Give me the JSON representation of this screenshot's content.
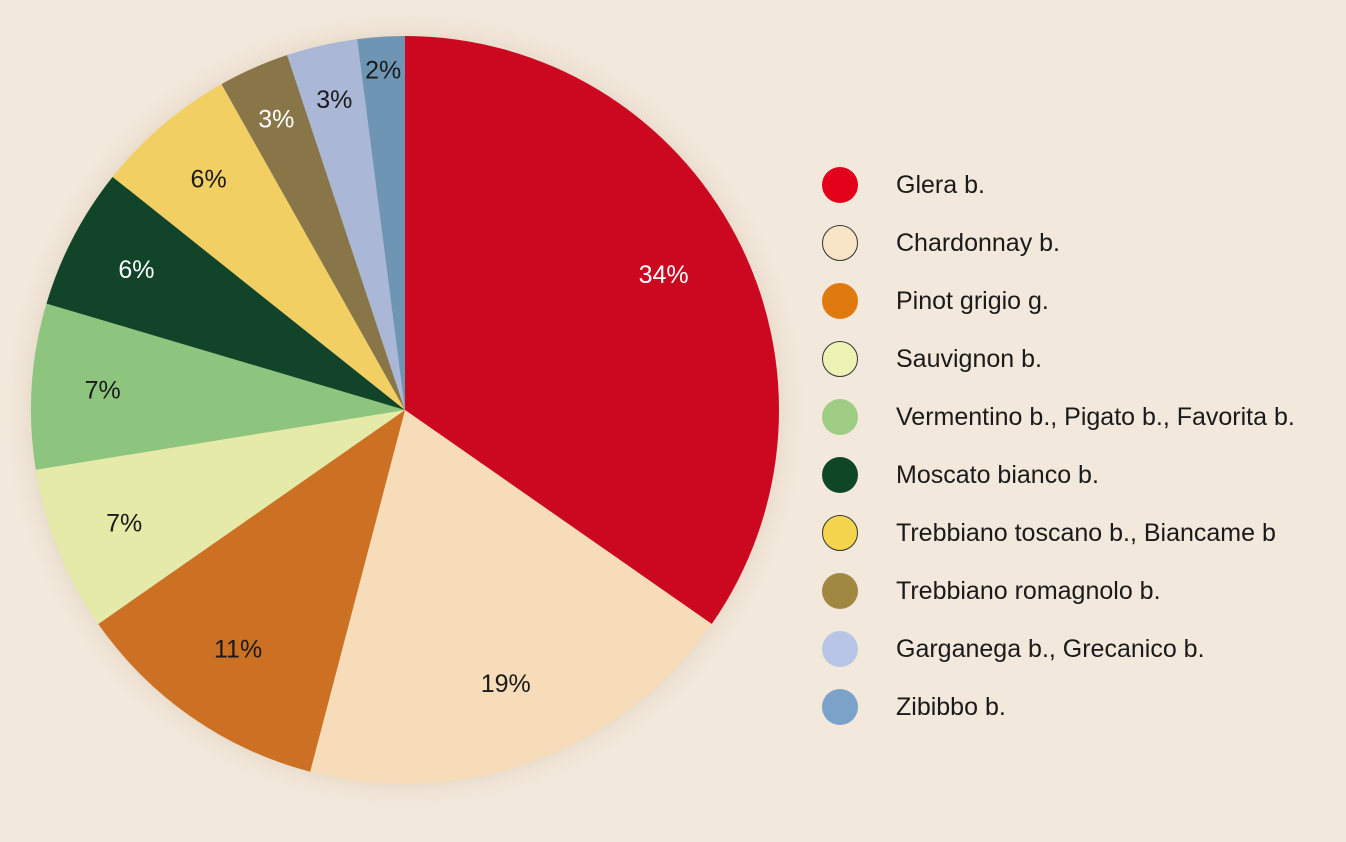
{
  "chart_data": {
    "type": "pie",
    "title": "",
    "start_angle_deg": 0,
    "direction": "clockwise",
    "slices": [
      {
        "label": "Glera b.",
        "value": 34,
        "display": "34%",
        "color": "#cc0820",
        "legend_color": "#e3001b",
        "label_color": "#ffffff"
      },
      {
        "label": "Chardonnay b.",
        "value": 19,
        "display": "19%",
        "color": "#f6dcb8",
        "legend_color": "#f8e4c6",
        "label_color": "#1a1a1a"
      },
      {
        "label": "Pinot grigio g.",
        "value": 11,
        "display": "11%",
        "color": "#cc7024",
        "legend_color": "#e07a0e",
        "label_color": "#1a1a1a"
      },
      {
        "label": "Sauvignon b.",
        "value": 7,
        "display": "7%",
        "color": "#e5eaa8",
        "legend_color": "#eef2b4",
        "label_color": "#1a1a1a"
      },
      {
        "label": "Vermentino b., Pigato b., Favorita b.",
        "value": 7,
        "display": "7%",
        "color": "#8dc57f",
        "legend_color": "#9fcd83",
        "label_color": "#1a1a1a"
      },
      {
        "label": "Moscato bianco b.",
        "value": 6,
        "display": "6%",
        "color": "#12442a",
        "legend_color": "#0f4726",
        "label_color": "#ffffff"
      },
      {
        "label": "Trebbiano toscano b., Biancame b",
        "value": 6,
        "display": "6%",
        "color": "#f2cf63",
        "legend_color": "#f5d54e",
        "label_color": "#1a1a1a"
      },
      {
        "label": "Trebbiano romagnolo b.",
        "value": 3,
        "display": "3%",
        "color": "#887648",
        "legend_color": "#a08843",
        "label_color": "#ffffff"
      },
      {
        "label": "Garganega b., Grecanico b.",
        "value": 3,
        "display": "3%",
        "color": "#abb7d6",
        "legend_color": "#b9c5e6",
        "label_color": "#1a1a1a"
      },
      {
        "label": "Zibibbo b.",
        "value": 2,
        "display": "2%",
        "color": "#6e96b4",
        "legend_color": "#7ba2c8",
        "label_color": "#1a1a1a"
      }
    ],
    "legend_position": "right"
  }
}
